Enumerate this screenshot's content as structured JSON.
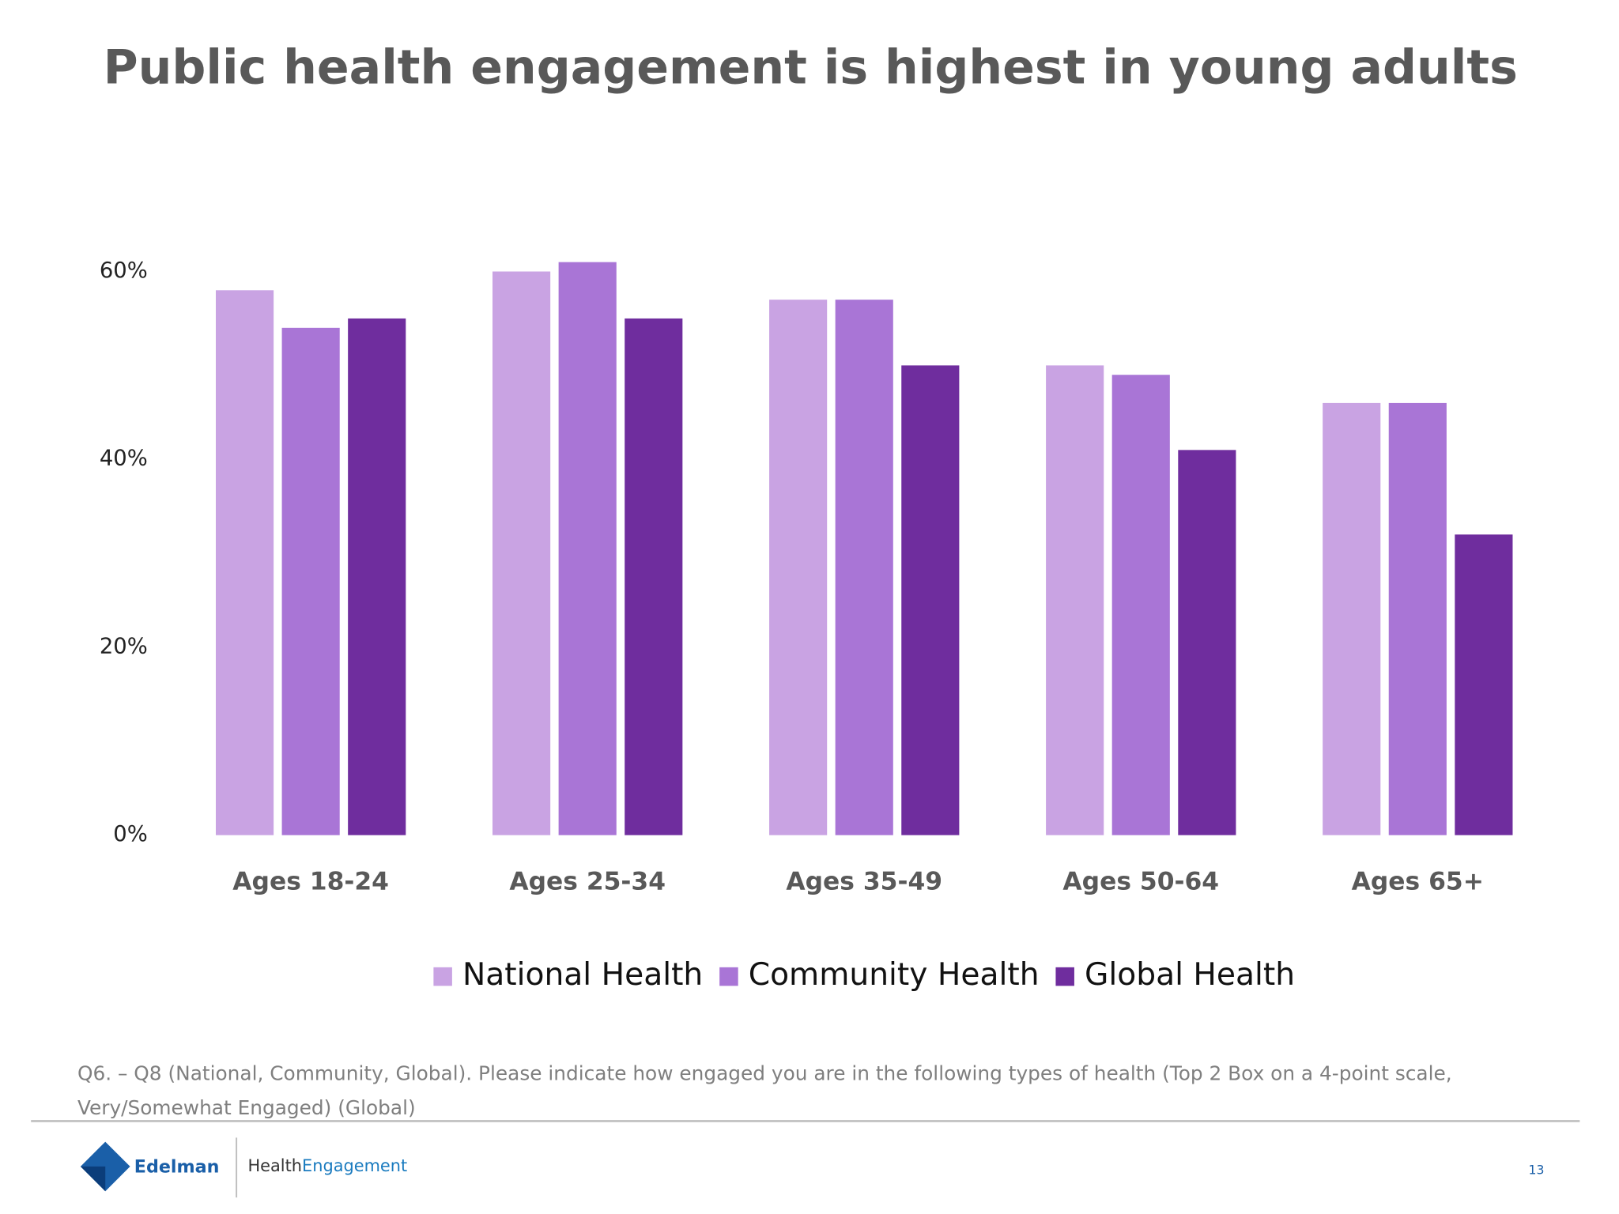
{
  "chart_data": {
    "type": "bar",
    "title": "Public health engagement is highest in young adults",
    "categories": [
      "Ages 18-24",
      "Ages 25-34",
      "Ages 35-49",
      "Ages 50-64",
      "Ages 65+"
    ],
    "series": [
      {
        "name": "National Health",
        "color": "#c9a3e3",
        "values": [
          58,
          60,
          57,
          50,
          46
        ]
      },
      {
        "name": "Community Health",
        "color": "#a975d6",
        "values": [
          54,
          61,
          57,
          49,
          46
        ]
      },
      {
        "name": "Global Health",
        "color": "#6f2d9e",
        "values": [
          55,
          55,
          50,
          41,
          32
        ]
      }
    ],
    "ylim": [
      0,
      60
    ],
    "yticks": [
      {
        "value": 0,
        "label": "0%"
      },
      {
        "value": 20,
        "label": "20%"
      },
      {
        "value": 40,
        "label": "40%"
      },
      {
        "value": 60,
        "label": "60%"
      }
    ],
    "grid": false,
    "legend": "bottom"
  },
  "footnote": [
    "Q6. – Q8 (National, Community, Global). Please indicate how engaged you are in the following types of health (Top 2 Box on a 4-point scale,",
    "Very/Somewhat Engaged)  (Global)"
  ],
  "footer": {
    "logo": "Edelman",
    "brand_part1": "Health",
    "brand_part2": "Engagement",
    "page": "13"
  }
}
